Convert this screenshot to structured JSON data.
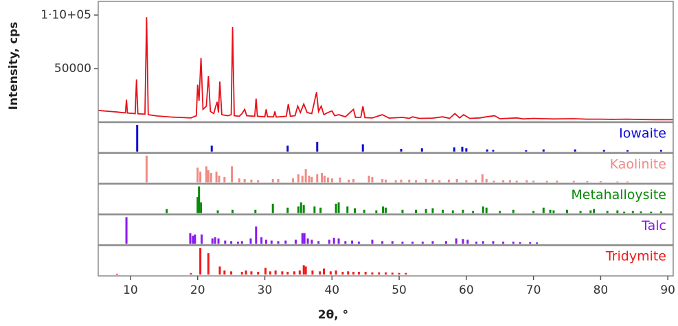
{
  "chart_data": {
    "type": "xrd",
    "xlabel": "2θ, °",
    "ylabel": "Intensity, cps",
    "xlim": [
      5.2,
      90.8
    ],
    "xticks": [
      10,
      20,
      30,
      40,
      50,
      60,
      70,
      80,
      90
    ],
    "ylim": [
      0,
      112800
    ],
    "yticks": [
      50000,
      {
        "value": 100000,
        "label": "1·10+05"
      }
    ],
    "pattern": {
      "color": "#e8101a",
      "x": [
        5.2,
        6,
        7,
        8,
        9.0,
        9.25,
        9.4,
        9.55,
        10.7,
        10.9,
        11.1,
        12.15,
        12.4,
        12.65,
        14,
        16,
        18,
        19,
        19.8,
        20.0,
        20.2,
        20.5,
        20.8,
        21.3,
        21.6,
        21.9,
        22.4,
        22.7,
        22.9,
        23.1,
        23.3,
        23.6,
        24.5,
        25.0,
        25.2,
        25.45,
        26.2,
        26.6,
        27.0,
        27.3,
        28.5,
        28.7,
        28.9,
        30.0,
        30.2,
        30.4,
        31.3,
        31.5,
        31.7,
        33.2,
        33.5,
        33.8,
        34.5,
        34.9,
        35.3,
        35.8,
        36.3,
        37.0,
        37.7,
        38.0,
        38.4,
        38.8,
        39.4,
        40.0,
        40.4,
        41.0,
        42.0,
        43.2,
        43.5,
        44.3,
        44.6,
        44.9,
        46.0,
        47.5,
        48.5,
        50.5,
        51.5,
        52.0,
        53,
        55,
        56.5,
        57.5,
        58.3,
        59.0,
        59.6,
        60.5,
        62,
        63,
        64.2,
        65,
        67.5,
        68.5,
        70,
        71.5,
        73,
        76,
        78,
        80,
        82,
        84,
        86,
        88,
        90.8
      ],
      "values": [
        11000,
        10500,
        10000,
        9500,
        8800,
        8800,
        21000,
        8500,
        8000,
        40000,
        7800,
        7500,
        98000,
        7000,
        5800,
        4800,
        4200,
        4000,
        6000,
        35000,
        20000,
        60000,
        12000,
        15000,
        43000,
        10000,
        8000,
        15000,
        19000,
        9000,
        38000,
        7000,
        6000,
        7000,
        89000,
        6000,
        5500,
        8000,
        12000,
        6000,
        5500,
        22000,
        5500,
        5000,
        12000,
        5000,
        5000,
        10000,
        4800,
        5500,
        17000,
        5500,
        6000,
        15000,
        9000,
        17000,
        9000,
        8000,
        28000,
        10000,
        15000,
        7000,
        9000,
        10500,
        6000,
        7000,
        5000,
        12000,
        4500,
        4500,
        15000,
        4200,
        4000,
        7000,
        3800,
        4500,
        3500,
        5000,
        3500,
        3800,
        5000,
        3500,
        8000,
        4000,
        7000,
        3500,
        4000,
        5000,
        6000,
        3200,
        4000,
        3000,
        3500,
        3200,
        3000,
        3200,
        2800,
        2800,
        2600,
        2800,
        2500,
        2400,
        2300
      ]
    },
    "ref_ylim": [
      0,
      100
    ],
    "references": [
      {
        "name": "Iowaite",
        "color": "#0a0ad8",
        "x": [
          11.0,
          22.1,
          33.4,
          37.8,
          44.6,
          50.3,
          53.4,
          58.2,
          59.4,
          60.0,
          63.1,
          64.0,
          68.9,
          71.5,
          76.2,
          80.5,
          84.0,
          89.0
        ],
        "values": [
          100,
          22,
          22,
          36,
          27,
          10,
          12,
          16,
          18,
          12,
          8,
          6,
          5,
          8,
          8,
          6,
          5,
          6
        ]
      },
      {
        "name": "Kaolinite",
        "color": "#f08a84",
        "x": [
          12.4,
          20.0,
          20.4,
          21.3,
          21.6,
          22.0,
          22.8,
          23.2,
          24.0,
          25.1,
          26.2,
          27.0,
          28.0,
          29.0,
          31.2,
          32.0,
          34.2,
          35.0,
          35.6,
          36.1,
          36.6,
          37.0,
          37.8,
          38.5,
          38.9,
          39.4,
          40.0,
          41.2,
          42.5,
          43.2,
          45.5,
          46.0,
          47.5,
          48.0,
          49.5,
          50.3,
          51.5,
          52.5,
          54.0,
          55.0,
          56.0,
          57.4,
          58.6,
          60.0,
          61.4,
          62.4,
          63.0,
          64.1,
          65.5,
          66.5,
          67.5,
          69.0,
          70.0,
          72.0,
          73.5,
          76.0,
          78.0,
          80.0,
          82.5,
          84.0
        ],
        "values": [
          100,
          55,
          40,
          60,
          45,
          35,
          40,
          25,
          20,
          60,
          15,
          12,
          10,
          8,
          12,
          12,
          15,
          30,
          25,
          50,
          25,
          20,
          30,
          35,
          25,
          18,
          15,
          18,
          10,
          12,
          25,
          20,
          12,
          10,
          8,
          10,
          10,
          8,
          12,
          10,
          8,
          10,
          12,
          8,
          10,
          30,
          12,
          6,
          8,
          8,
          6,
          8,
          6,
          5,
          6,
          5,
          4,
          4,
          3,
          3
        ]
      },
      {
        "name": "Metahalloysite",
        "color": "#0a8a0a",
        "x": [
          15.4,
          20.0,
          20.2,
          20.5,
          23.0,
          25.2,
          28.6,
          31.2,
          33.4,
          35.0,
          35.4,
          35.8,
          37.4,
          38.3,
          40.6,
          41.0,
          42.3,
          43.4,
          44.8,
          46.6,
          47.6,
          48.0,
          50.5,
          52.5,
          54.0,
          55.0,
          56.5,
          58.0,
          59.5,
          61.0,
          62.5,
          63.0,
          65.0,
          67.0,
          70.0,
          71.5,
          72.5,
          73.0,
          75.0,
          77.0,
          78.5,
          79.0,
          81.0,
          82.5,
          83.5,
          84.8,
          86.0,
          87.5,
          89.0
        ],
        "values": [
          15,
          60,
          100,
          40,
          10,
          12,
          12,
          35,
          20,
          25,
          40,
          30,
          25,
          20,
          35,
          40,
          25,
          18,
          12,
          10,
          25,
          20,
          12,
          12,
          15,
          18,
          12,
          10,
          12,
          8,
          25,
          20,
          8,
          12,
          8,
          20,
          12,
          10,
          12,
          8,
          10,
          15,
          8,
          10,
          5,
          8,
          6,
          5,
          6
        ]
      },
      {
        "name": "Talc",
        "color": "#8a1af0",
        "x": [
          9.4,
          18.9,
          19.3,
          19.6,
          20.6,
          22.2,
          22.6,
          23.1,
          24.1,
          25.0,
          26.0,
          26.6,
          27.9,
          28.7,
          29.5,
          30.2,
          31.0,
          32.0,
          33.1,
          34.6,
          35.6,
          35.9,
          36.4,
          37.0,
          38.0,
          39.6,
          40.3,
          41.0,
          42.0,
          43.0,
          44.0,
          46.0,
          47.5,
          49.0,
          50.5,
          52.0,
          53.5,
          55.0,
          57.0,
          58.5,
          59.5,
          60.2,
          61.5,
          62.5,
          64.0,
          65.5,
          67.0,
          68.0,
          69.5,
          70.5
        ],
        "values": [
          100,
          40,
          30,
          35,
          35,
          20,
          25,
          20,
          12,
          10,
          8,
          10,
          20,
          65,
          25,
          15,
          12,
          10,
          12,
          15,
          40,
          40,
          20,
          15,
          10,
          15,
          22,
          20,
          10,
          12,
          8,
          15,
          10,
          10,
          8,
          8,
          8,
          10,
          10,
          20,
          18,
          15,
          8,
          10,
          10,
          8,
          8,
          6,
          6,
          5
        ]
      },
      {
        "name": "Tridymite",
        "color": "#ee1a1a",
        "x": [
          8.0,
          19.0,
          20.4,
          21.6,
          23.3,
          24.0,
          25.0,
          26.6,
          27.2,
          28.0,
          29.0,
          30.1,
          30.8,
          31.6,
          32.6,
          33.4,
          34.4,
          35.2,
          35.8,
          36.1,
          37.1,
          38.2,
          38.8,
          39.8,
          40.6,
          41.6,
          42.4,
          43.2,
          44.0,
          45.0,
          46.0,
          47.0,
          48.0,
          49.0,
          50.0,
          51.0
        ],
        "values": [
          3,
          5,
          100,
          80,
          30,
          15,
          12,
          10,
          15,
          12,
          10,
          25,
          12,
          15,
          12,
          10,
          12,
          15,
          35,
          30,
          15,
          12,
          22,
          12,
          15,
          10,
          12,
          10,
          10,
          10,
          8,
          8,
          8,
          7,
          6,
          6
        ]
      }
    ]
  }
}
